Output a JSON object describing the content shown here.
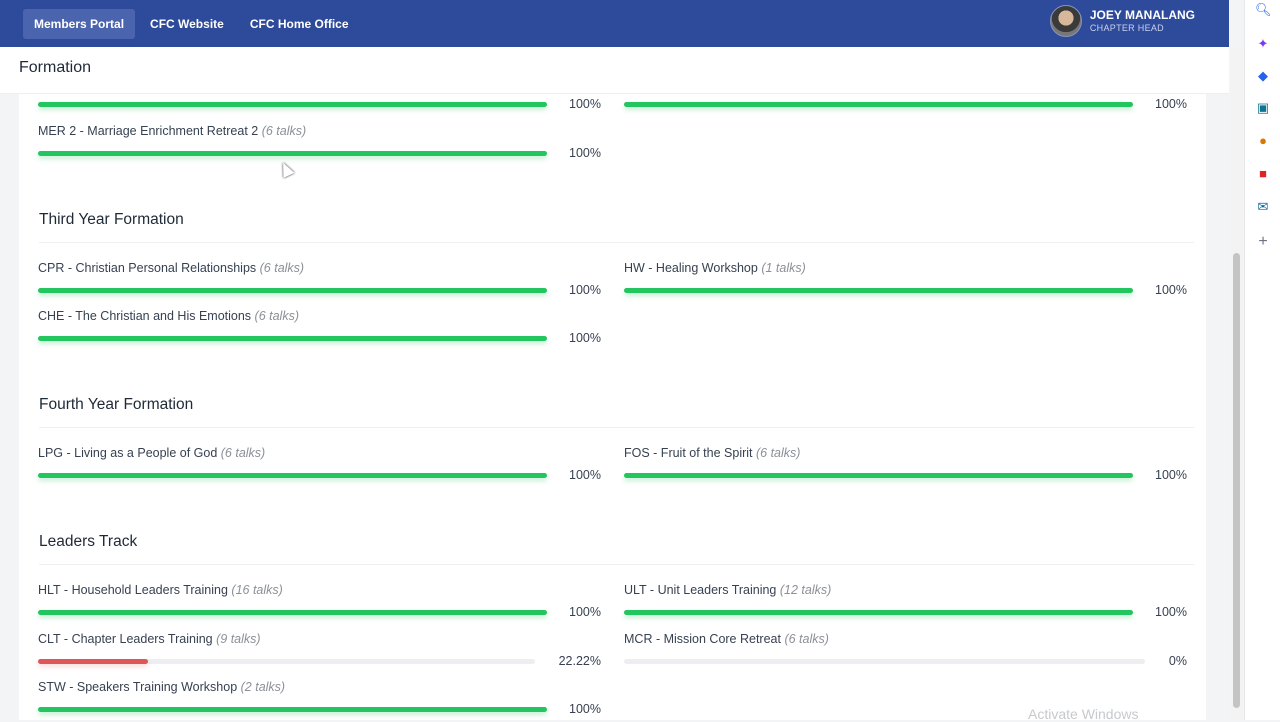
{
  "nav": {
    "links": [
      "Members Portal",
      "CFC Website",
      "CFC Home Office"
    ],
    "user_name": "JOEY MANALANG",
    "user_role": "CHAPTER HEAD"
  },
  "page_title": "Formation",
  "top_partial": {
    "left_pct": "100%",
    "right_pct": "100%"
  },
  "mer2": {
    "name": "MER 2 - Marriage Enrichment Retreat 2",
    "talks": "(6 talks)",
    "pct": "100%",
    "progress": 100
  },
  "third_year": {
    "title": "Third Year Formation",
    "courses": [
      {
        "name": "CPR - Christian Personal Relationships",
        "talks": "(6 talks)",
        "pct": "100%",
        "progress": 100
      },
      {
        "name": "HW - Healing Workshop",
        "talks": "(1 talks)",
        "pct": "100%",
        "progress": 100
      },
      {
        "name": "CHE - The Christian and His Emotions",
        "talks": "(6 talks)",
        "pct": "100%",
        "progress": 100
      }
    ]
  },
  "fourth_year": {
    "title": "Fourth Year Formation",
    "courses": [
      {
        "name": "LPG - Living as a People of God",
        "talks": "(6 talks)",
        "pct": "100%",
        "progress": 100
      },
      {
        "name": "FOS - Fruit of the Spirit",
        "talks": "(6 talks)",
        "pct": "100%",
        "progress": 100
      }
    ]
  },
  "leaders": {
    "title": "Leaders Track",
    "courses": [
      {
        "name": "HLT - Household Leaders Training",
        "talks": "(16 talks)",
        "pct": "100%",
        "progress": 100
      },
      {
        "name": "ULT - Unit Leaders Training",
        "talks": "(12 talks)",
        "pct": "100%",
        "progress": 100
      },
      {
        "name": "CLT - Chapter Leaders Training",
        "talks": "(9 talks)",
        "pct": "22.22%",
        "progress": 22.22
      },
      {
        "name": "MCR - Mission Core Retreat",
        "talks": "(6 talks)",
        "pct": "0%",
        "progress": 0
      },
      {
        "name": "STW - Speakers Training Workshop",
        "talks": "(2 talks)",
        "pct": "100%",
        "progress": 100
      }
    ]
  },
  "watermark": "Activate Windows",
  "colors": {
    "nav": "#2e4a9a",
    "complete": "#22c55e",
    "partial": "#e05656"
  }
}
